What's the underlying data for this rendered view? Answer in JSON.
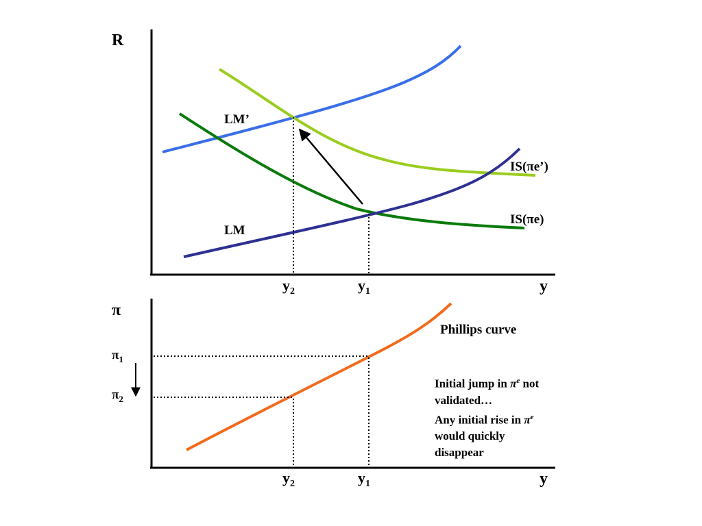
{
  "top_panel": {
    "y_axis_label": "R",
    "x_axis_label": "y",
    "ticks": [
      {
        "base": "y",
        "sub": "2"
      },
      {
        "base": "y",
        "sub": "1"
      }
    ],
    "curves": [
      {
        "label": "LM’",
        "color": "#3a6fe8"
      },
      {
        "label": "LM",
        "color": "#2e3192"
      },
      {
        "label_prefix": "IS(",
        "label_symbol": "π",
        "label_suffix": "e’)",
        "color": "#9acd1e"
      },
      {
        "label_prefix": "IS(",
        "label_symbol": "π",
        "label_suffix": "e)",
        "color": "#0b7a0b"
      }
    ]
  },
  "bottom_panel": {
    "y_axis_label": "π",
    "x_axis_label": "y",
    "ticks": [
      {
        "base": "y",
        "sub": "2"
      },
      {
        "base": "y",
        "sub": "1"
      }
    ],
    "pi_levels": [
      {
        "base": "π",
        "sub": "1"
      },
      {
        "base": "π",
        "sub": "2"
      }
    ],
    "curve_label": "Phillips curve",
    "curve_color": "#f26b1d"
  },
  "note": {
    "line1_a": "Initial jump in ",
    "line1_sym": "π",
    "line1_sup": "e",
    "line1_b": " not",
    "line2": "validated…",
    "line3_a": "Any initial rise in ",
    "line3_sym": "π",
    "line3_sup": "e",
    "line4": "would quickly",
    "line5": "disappear"
  }
}
